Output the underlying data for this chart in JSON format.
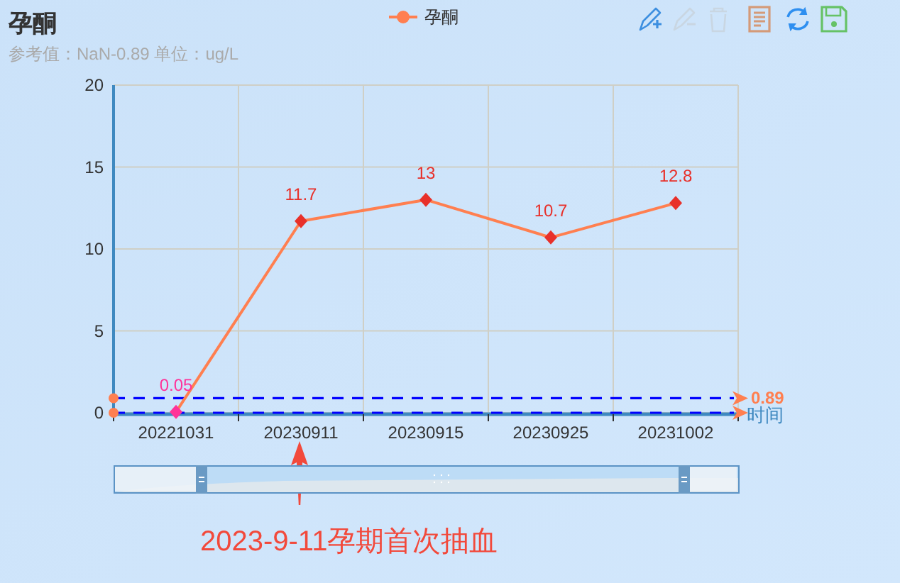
{
  "chart_data": {
    "type": "line",
    "title": "孕酮",
    "subtitle": "参考值：NaN-0.89 单位：ug/L",
    "xlabel": "时间",
    "categories": [
      "20221031",
      "20230911",
      "20230915",
      "20230925",
      "20231002"
    ],
    "series": [
      {
        "name": "孕酮",
        "color": "#ff7f50",
        "colors": [
          "#ff3399",
          "#e8302a",
          "#e8302a",
          "#e8302a",
          "#e8302a"
        ],
        "values": [
          0.05,
          11.7,
          13,
          10.7,
          12.8
        ]
      }
    ],
    "ylim": [
      0,
      20
    ],
    "yticks": [
      0,
      5,
      10,
      15,
      20
    ],
    "grid": true,
    "legend": "top",
    "marker": "diamond",
    "data_labels": true,
    "ref_lines": [
      {
        "axis": "y",
        "value": 0.89,
        "label": "0.89",
        "color": "#0000ff",
        "line_style": "dashed"
      },
      {
        "axis": "y",
        "value": 0,
        "color": "#0000ff",
        "line_style": "dashed"
      }
    ],
    "annotations": [
      "2023-9-11孕期首次抽血"
    ]
  }
}
